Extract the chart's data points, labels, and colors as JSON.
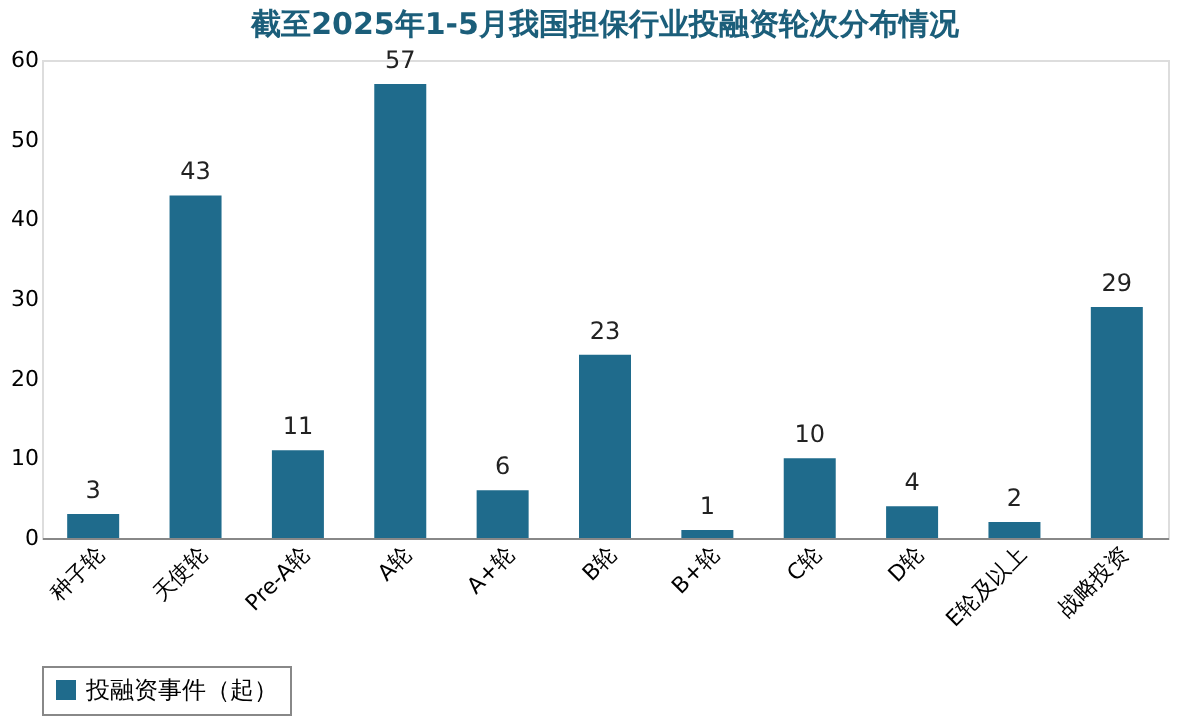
{
  "chart_data": {
    "type": "bar",
    "title": "截至2025年1-5月我国担保行业投融资轮次分布情况",
    "categories": [
      "种子轮",
      "天使轮",
      "Pre-A轮",
      "A轮",
      "A+轮",
      "B轮",
      "B+轮",
      "C轮",
      "D轮",
      "E轮及以上",
      "战略投资"
    ],
    "series": [
      {
        "name": "投融资事件（起）",
        "color": "#1f6b8c",
        "values": [
          3,
          43,
          11,
          57,
          6,
          23,
          1,
          10,
          4,
          2,
          29
        ]
      }
    ],
    "ylim": [
      0,
      60
    ],
    "yticks": [
      0,
      10,
      20,
      30,
      40,
      50,
      60
    ],
    "data_labels": true,
    "legend": "bottom",
    "grid": false
  }
}
